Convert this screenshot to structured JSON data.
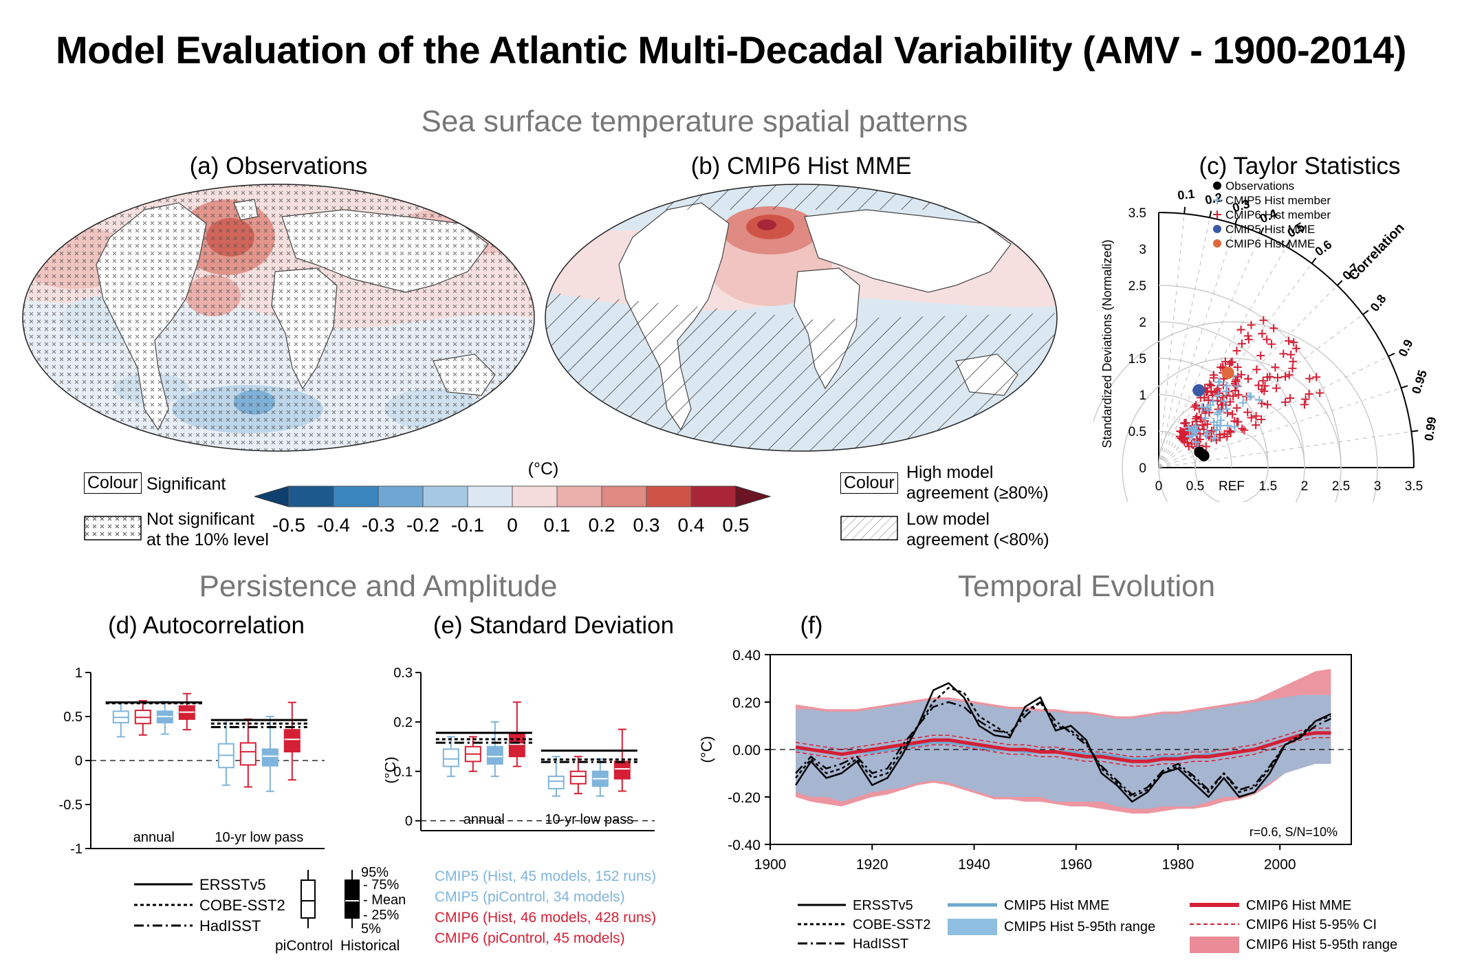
{
  "title": "Model Evaluation of the Atlantic Multi-Decadal Variability (AMV - 1900-2014)",
  "section_titles": {
    "spatial": "Sea surface temperature spatial patterns",
    "persistence": "Persistence and Amplitude",
    "temporal": "Temporal Evolution"
  },
  "panel_titles": {
    "a": "(a) Observations",
    "b": "(b) CMIP6 Hist MME",
    "c": "(c) Taylor Statistics",
    "d": "(d) Autocorrelation",
    "e": "(e) Standard Deviation",
    "f": "(f)"
  },
  "colorbar": {
    "unit": "(°C)",
    "ticks": [
      "-0.5",
      "-0.4",
      "-0.3",
      "-0.2",
      "-0.1",
      "0",
      "0.1",
      "0.2",
      "0.3",
      "0.4",
      "0.5"
    ],
    "colors": [
      "#1c5a8e",
      "#3a85be",
      "#6fa7d2",
      "#a6c9e3",
      "#dbe8f2",
      "#f5dcdc",
      "#ebb0ac",
      "#df8a82",
      "#cf5447",
      "#a82638"
    ]
  },
  "legend_maps": {
    "colour_box": "Colour",
    "significant": "Significant",
    "not_significant_1": "Not significant",
    "not_significant_2": "at the 10% level",
    "high_agree_1": "High model",
    "high_agree_2": "agreement (≥80%)",
    "low_agree_1": "Low model",
    "low_agree_2": "agreement (<80%)"
  },
  "taylor": {
    "legend": [
      "Observations",
      "CMIP5 Hist member",
      "CMIP6 Hist member",
      "CMIP5 Hist MME",
      "CMIP6 Hist MME"
    ],
    "legend_colors": [
      "#000000",
      "#7fb4dc",
      "#d51f35",
      "#3b5aa6",
      "#e06a3b"
    ],
    "ylabel": "Standardized Deviations (Normalized)",
    "xticks": [
      "0",
      "0.5",
      "REF",
      "1.5",
      "2",
      "2.5",
      "3",
      "3.5"
    ],
    "yticks": [
      "0",
      "0.5",
      "1",
      "1.5",
      "2",
      "2.5",
      "3",
      "3.5"
    ],
    "corr_label": "Correlation",
    "corr_ticks": [
      "0.1",
      "0.2",
      "0.3",
      "0.4",
      "0.5",
      "0.6",
      "0.7",
      "0.8",
      "0.9",
      "0.95",
      "0.99"
    ]
  },
  "panel_d": {
    "yticks": [
      "1",
      "0.5",
      "0",
      "-0.5",
      "-1"
    ],
    "categories": [
      "annual",
      "10-yr low pass"
    ]
  },
  "panel_e": {
    "yticks": [
      "0.3",
      "0.2",
      "0.1",
      "0"
    ],
    "ylabel": "(°C)",
    "categories": [
      "annual",
      "10-yr low pass"
    ]
  },
  "legend_obs": [
    "ERSSTv5",
    "COBE-SST2",
    "HadISST"
  ],
  "legend_box": {
    "p95": "95%",
    "p75": "- 75%",
    "mean": "- Mean",
    "p25": "- 25%",
    "p5": "5%",
    "picontrol": "piControl",
    "historical": "Historical"
  },
  "legend_models": [
    {
      "text": "CMIP5 (Hist, 45 models, 152 runs)",
      "color": "#7fb4dc"
    },
    {
      "text": "CMIP5 (piControl, 34 models)",
      "color": "#7fb4dc"
    },
    {
      "text": "CMIP6 (Hist, 46 models, 428 runs)",
      "color": "#d51f35"
    },
    {
      "text": "CMIP6 (piControl, 45 models)",
      "color": "#d51f35"
    }
  ],
  "panel_f": {
    "yticks": [
      "0.40",
      "0.20",
      "0.00",
      "-0.20",
      "-0.40"
    ],
    "xticks": [
      "1900",
      "1920",
      "1940",
      "1960",
      "1980",
      "2000"
    ],
    "ylabel": "(°C)",
    "stats": "r=0.6,  S/N=10%",
    "legend": [
      "ERSSTv5",
      "COBE-SST2",
      "HadISST",
      "CMIP5 Hist MME",
      "CMIP5 Hist 5-95th range",
      "CMIP6 Hist MME",
      "CMIP6 Hist 5-95% CI",
      "CMIP6 Hist 5-95th range"
    ]
  },
  "chart_data": [
    {
      "type": "box",
      "panel": "d",
      "title": "(d) Autocorrelation",
      "categories": [
        "annual",
        "10-yr low pass"
      ],
      "ylim": [
        -1,
        1
      ],
      "observations": {
        "ERSSTv5": [
          0.66,
          0.46
        ],
        "COBE-SST2": [
          0.65,
          0.42
        ],
        "HadISST": [
          0.66,
          0.38
        ]
      },
      "series": [
        {
          "name": "CMIP5 piControl",
          "stats": [
            [
              0.27,
              0.43,
              0.49,
              0.56,
              0.66
            ],
            [
              -0.28,
              -0.08,
              0.06,
              0.19,
              0.46
            ]
          ]
        },
        {
          "name": "CMIP6 piControl",
          "stats": [
            [
              0.29,
              0.42,
              0.49,
              0.57,
              0.68
            ],
            [
              -0.3,
              -0.05,
              0.1,
              0.2,
              0.47
            ]
          ]
        },
        {
          "name": "CMIP5 Historical",
          "stats": [
            [
              0.3,
              0.43,
              0.5,
              0.56,
              0.67
            ],
            [
              -0.35,
              -0.06,
              0.05,
              0.13,
              0.5
            ]
          ]
        },
        {
          "name": "CMIP6 Historical",
          "stats": [
            [
              0.35,
              0.47,
              0.55,
              0.62,
              0.76
            ],
            [
              -0.22,
              0.1,
              0.24,
              0.35,
              0.66
            ]
          ]
        }
      ]
    },
    {
      "type": "box",
      "panel": "e",
      "title": "(e) Standard Deviation",
      "ylabel": "(°C)",
      "categories": [
        "annual",
        "10-yr low pass"
      ],
      "ylim": [
        -0.02,
        0.3
      ],
      "observations": {
        "ERSSTv5": [
          0.178,
          0.142
        ],
        "COBE-SST2": [
          0.165,
          0.124
        ],
        "HadISST": [
          0.158,
          0.119
        ]
      },
      "series": [
        {
          "name": "CMIP5 piControl",
          "stats": [
            [
              0.09,
              0.11,
              0.125,
              0.145,
              0.17
            ],
            [
              0.05,
              0.065,
              0.08,
              0.09,
              0.13
            ]
          ]
        },
        {
          "name": "CMIP6 piControl",
          "stats": [
            [
              0.1,
              0.12,
              0.135,
              0.15,
              0.17
            ],
            [
              0.055,
              0.075,
              0.09,
              0.1,
              0.13
            ]
          ]
        },
        {
          "name": "CMIP5 Historical",
          "stats": [
            [
              0.09,
              0.115,
              0.13,
              0.15,
              0.2
            ],
            [
              0.05,
              0.07,
              0.085,
              0.1,
              0.125
            ]
          ]
        },
        {
          "name": "CMIP6 Historical",
          "stats": [
            [
              0.11,
              0.13,
              0.155,
              0.175,
              0.24
            ],
            [
              0.06,
              0.085,
              0.105,
              0.12,
              0.185
            ]
          ]
        }
      ]
    },
    {
      "type": "line",
      "panel": "f",
      "ylabel": "(°C)",
      "xlim": [
        1900,
        2014
      ],
      "ylim": [
        -0.4,
        0.4
      ],
      "x": [
        1905,
        1908,
        1911,
        1914,
        1917,
        1920,
        1923,
        1926,
        1929,
        1932,
        1935,
        1938,
        1941,
        1944,
        1947,
        1950,
        1953,
        1956,
        1959,
        1962,
        1965,
        1968,
        1971,
        1974,
        1977,
        1980,
        1983,
        1986,
        1989,
        1992,
        1995,
        1998,
        2001,
        2004,
        2007,
        2010
      ],
      "series": [
        {
          "name": "ERSSTv5",
          "values": [
            -0.15,
            -0.05,
            -0.12,
            -0.1,
            -0.05,
            -0.15,
            -0.12,
            -0.02,
            0.1,
            0.25,
            0.28,
            0.22,
            0.1,
            0.06,
            0.05,
            0.18,
            0.22,
            0.08,
            0.1,
            0.04,
            -0.1,
            -0.15,
            -0.22,
            -0.18,
            -0.1,
            -0.08,
            -0.14,
            -0.2,
            -0.12,
            -0.2,
            -0.18,
            -0.1,
            0.02,
            0.05,
            0.12,
            0.15
          ]
        },
        {
          "name": "COBE-SST2",
          "values": [
            -0.12,
            -0.04,
            -0.1,
            -0.08,
            -0.04,
            -0.12,
            -0.1,
            0.0,
            0.1,
            0.2,
            0.26,
            0.24,
            0.14,
            0.1,
            0.06,
            0.16,
            0.2,
            0.1,
            0.08,
            0.03,
            -0.08,
            -0.14,
            -0.2,
            -0.17,
            -0.1,
            -0.07,
            -0.12,
            -0.18,
            -0.1,
            -0.18,
            -0.16,
            -0.08,
            0.02,
            0.06,
            0.12,
            0.14
          ]
        },
        {
          "name": "HadISST",
          "values": [
            -0.1,
            -0.03,
            -0.08,
            -0.06,
            -0.03,
            -0.1,
            -0.08,
            0.02,
            0.1,
            0.18,
            0.2,
            0.18,
            0.12,
            0.08,
            0.07,
            0.14,
            0.2,
            0.12,
            0.07,
            0.02,
            -0.07,
            -0.13,
            -0.19,
            -0.16,
            -0.09,
            -0.06,
            -0.11,
            -0.17,
            -0.1,
            -0.17,
            -0.15,
            -0.07,
            0.02,
            0.05,
            0.1,
            0.13
          ]
        },
        {
          "name": "CMIP5 Hist MME",
          "values": [
            0.0,
            0.0,
            -0.01,
            -0.02,
            -0.01,
            -0.01,
            0.0,
            0.01,
            0.02,
            0.03,
            0.03,
            0.02,
            0.01,
            0.0,
            0.0,
            -0.01,
            -0.01,
            -0.01,
            -0.01,
            -0.02,
            -0.02,
            -0.03,
            -0.04,
            -0.04,
            -0.03,
            -0.03,
            -0.03,
            -0.02,
            -0.02,
            -0.01,
            0.0,
            0.02,
            0.04,
            0.06,
            0.07,
            0.07
          ]
        },
        {
          "name": "CMIP6 Hist MME",
          "values": [
            0.01,
            0.0,
            -0.01,
            -0.02,
            -0.01,
            0.0,
            0.01,
            0.02,
            0.03,
            0.04,
            0.04,
            0.03,
            0.02,
            0.01,
            0.0,
            0.0,
            -0.01,
            -0.01,
            -0.02,
            -0.03,
            -0.03,
            -0.04,
            -0.05,
            -0.05,
            -0.04,
            -0.04,
            -0.03,
            -0.03,
            -0.02,
            -0.01,
            0.0,
            0.02,
            0.04,
            0.06,
            0.07,
            0.07
          ]
        },
        {
          "name": "CMIP5 Hist 5-95th range",
          "lower": [
            -0.18,
            -0.2,
            -0.2,
            -0.22,
            -0.2,
            -0.18,
            -0.17,
            -0.16,
            -0.14,
            -0.13,
            -0.14,
            -0.16,
            -0.18,
            -0.2,
            -0.2,
            -0.2,
            -0.2,
            -0.22,
            -0.22,
            -0.22,
            -0.22,
            -0.24,
            -0.25,
            -0.25,
            -0.24,
            -0.24,
            -0.24,
            -0.22,
            -0.2,
            -0.2,
            -0.18,
            -0.14,
            -0.1,
            -0.08,
            -0.06,
            -0.06
          ],
          "upper": [
            0.17,
            0.17,
            0.16,
            0.16,
            0.16,
            0.17,
            0.18,
            0.19,
            0.2,
            0.21,
            0.21,
            0.2,
            0.19,
            0.18,
            0.17,
            0.17,
            0.16,
            0.16,
            0.15,
            0.15,
            0.14,
            0.13,
            0.13,
            0.14,
            0.15,
            0.15,
            0.16,
            0.17,
            0.18,
            0.19,
            0.2,
            0.21,
            0.22,
            0.23,
            0.23,
            0.23
          ]
        },
        {
          "name": "CMIP6 Hist 5-95th range",
          "lower": [
            -0.2,
            -0.22,
            -0.23,
            -0.24,
            -0.22,
            -0.2,
            -0.19,
            -0.17,
            -0.15,
            -0.14,
            -0.15,
            -0.17,
            -0.19,
            -0.21,
            -0.21,
            -0.22,
            -0.22,
            -0.23,
            -0.24,
            -0.24,
            -0.25,
            -0.26,
            -0.27,
            -0.27,
            -0.26,
            -0.25,
            -0.25,
            -0.24,
            -0.22,
            -0.21,
            -0.19,
            -0.15,
            -0.1,
            -0.08,
            -0.06,
            -0.06
          ],
          "upper": [
            0.19,
            0.18,
            0.17,
            0.17,
            0.17,
            0.18,
            0.19,
            0.2,
            0.21,
            0.22,
            0.22,
            0.21,
            0.2,
            0.19,
            0.18,
            0.18,
            0.17,
            0.17,
            0.16,
            0.16,
            0.15,
            0.14,
            0.14,
            0.15,
            0.16,
            0.16,
            0.17,
            0.18,
            0.19,
            0.2,
            0.21,
            0.24,
            0.27,
            0.3,
            0.33,
            0.34
          ]
        }
      ]
    }
  ]
}
